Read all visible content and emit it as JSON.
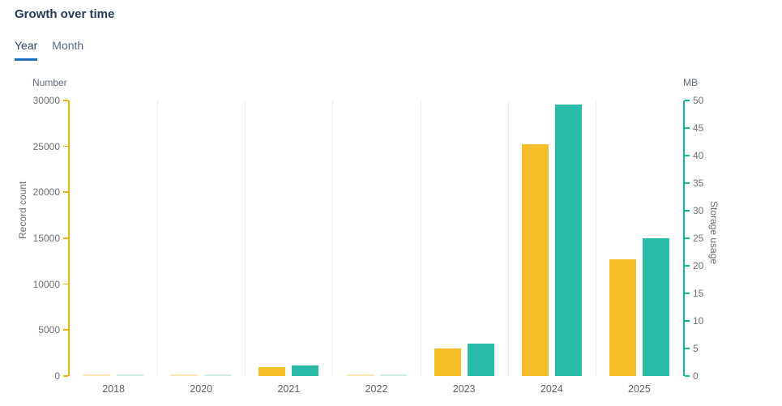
{
  "title": "Growth over time",
  "tabs": [
    {
      "label": "Year",
      "active": true
    },
    {
      "label": "Month",
      "active": false
    }
  ],
  "colors": {
    "title_text": "#233a54",
    "tab_active_underline": "#1d6fc8",
    "record_bar": "#F4BE28",
    "record_bar_faint": "#FBE7B4",
    "storage_bar": "#29BCA8",
    "storage_bar_faint": "#CDEBE7",
    "record_axis": "#EDB211",
    "storage_axis": "#12B5A5",
    "grid": "#ededed",
    "tick_text": "#6e6e6e"
  },
  "chart_data": {
    "type": "bar",
    "title": "Growth over time",
    "categories": [
      "2018",
      "2020",
      "2021",
      "2022",
      "2023",
      "2024",
      "2025"
    ],
    "series": [
      {
        "name": "Record count",
        "axis": "left",
        "color": "#F4BE28",
        "values": [
          30,
          30,
          1000,
          30,
          3000,
          25200,
          12700
        ]
      },
      {
        "name": "Storage usage",
        "axis": "right",
        "color": "#29BCA8",
        "values": [
          0.1,
          0.1,
          1.9,
          0.1,
          5.9,
          49.3,
          25
        ]
      }
    ],
    "left_axis": {
      "name": "Number",
      "label": "Record count",
      "min": 0,
      "max": 30000,
      "step": 5000
    },
    "right_axis": {
      "name": "MB",
      "label": "Storage usage",
      "min": 0,
      "max": 50,
      "step": 5
    },
    "grid": true,
    "legend": "none"
  }
}
